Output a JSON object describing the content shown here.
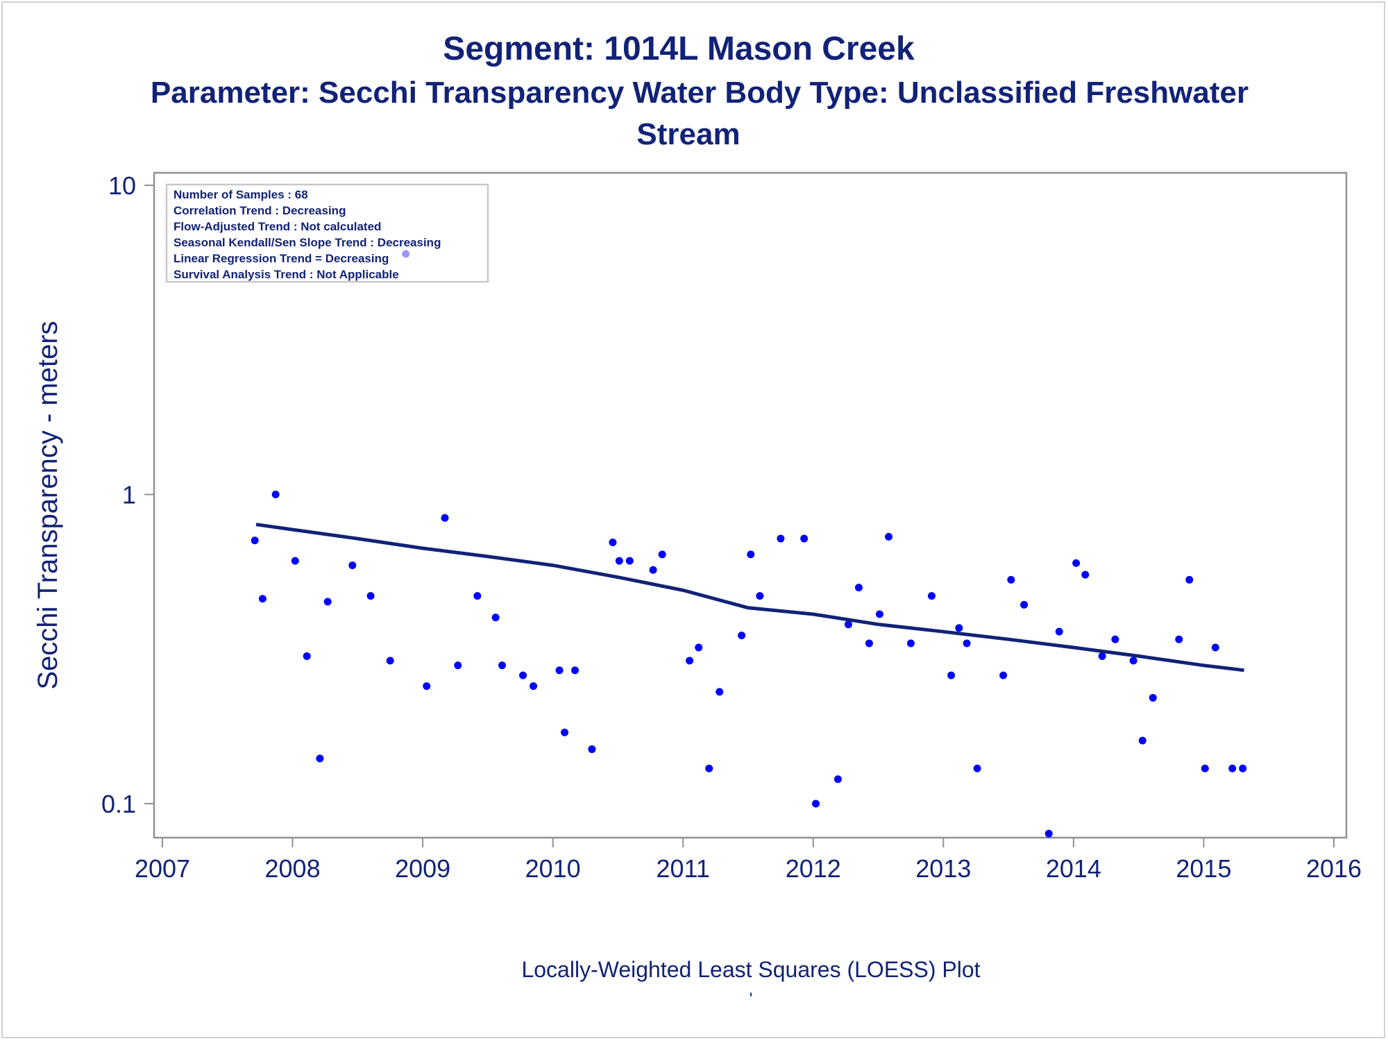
{
  "chart_data": {
    "type": "scatter",
    "title": "Segment: 1014L  Mason Creek",
    "subtitle_line1": "Parameter: Secchi Transparency   Water Body Type: Unclassified Freshwater",
    "subtitle_line2": "Stream",
    "xlabel": "Locally-Weighted Least Squares (LOESS) Plot",
    "xlabel_mark": "'",
    "ylabel": "Secchi Transparency - meters",
    "xlim": [
      2007,
      2016
    ],
    "ylim": [
      0.08,
      10
    ],
    "yscale": "log",
    "x_ticks": [
      "2007",
      "2008",
      "2009",
      "2010",
      "2011",
      "2012",
      "2013",
      "2014",
      "2015",
      "2016"
    ],
    "y_ticks": [
      {
        "value": 0.1,
        "label": "0.1"
      },
      {
        "value": 1,
        "label": "1"
      },
      {
        "value": 10,
        "label": "10"
      }
    ],
    "grid": false,
    "stats_box": {
      "position": "top-left",
      "lines": [
        "Number of Samples : 68",
        "Correlation Trend : Decreasing",
        "Flow-Adjusted Trend : Not calculated",
        "Seasonal Kendall/Sen Slope Trend : Decreasing",
        "Linear Regression Trend = Decreasing",
        "Survival Analysis Trend : Not Applicable"
      ]
    },
    "colors": {
      "points": "#0000ff",
      "trend_line": "#112277",
      "text": "#112277",
      "axes": "#909090"
    },
    "points": [
      {
        "x": 2007.71,
        "y": 0.71
      },
      {
        "x": 2007.77,
        "y": 0.46
      },
      {
        "x": 2007.87,
        "y": 1.0
      },
      {
        "x": 2008.02,
        "y": 0.61
      },
      {
        "x": 2008.11,
        "y": 0.3
      },
      {
        "x": 2008.21,
        "y": 0.14
      },
      {
        "x": 2008.27,
        "y": 0.45
      },
      {
        "x": 2008.46,
        "y": 0.59
      },
      {
        "x": 2008.6,
        "y": 0.47
      },
      {
        "x": 2008.75,
        "y": 0.29
      },
      {
        "x": 2008.87,
        "y": 6.0
      },
      {
        "x": 2009.03,
        "y": 0.24
      },
      {
        "x": 2009.17,
        "y": 0.84
      },
      {
        "x": 2009.27,
        "y": 0.28
      },
      {
        "x": 2009.42,
        "y": 0.47
      },
      {
        "x": 2009.56,
        "y": 0.4
      },
      {
        "x": 2009.61,
        "y": 0.28
      },
      {
        "x": 2009.77,
        "y": 0.26
      },
      {
        "x": 2009.85,
        "y": 0.24
      },
      {
        "x": 2010.05,
        "y": 0.27
      },
      {
        "x": 2010.09,
        "y": 0.17
      },
      {
        "x": 2010.17,
        "y": 0.27
      },
      {
        "x": 2010.3,
        "y": 0.15
      },
      {
        "x": 2010.46,
        "y": 0.7
      },
      {
        "x": 2010.51,
        "y": 0.61
      },
      {
        "x": 2010.59,
        "y": 0.61
      },
      {
        "x": 2010.77,
        "y": 0.57
      },
      {
        "x": 2010.84,
        "y": 0.64
      },
      {
        "x": 2011.05,
        "y": 0.29
      },
      {
        "x": 2011.12,
        "y": 0.32
      },
      {
        "x": 2011.2,
        "y": 0.13
      },
      {
        "x": 2011.28,
        "y": 0.23
      },
      {
        "x": 2011.45,
        "y": 0.35
      },
      {
        "x": 2011.52,
        "y": 0.64
      },
      {
        "x": 2011.59,
        "y": 0.47
      },
      {
        "x": 2011.75,
        "y": 0.72
      },
      {
        "x": 2011.93,
        "y": 0.72
      },
      {
        "x": 2012.02,
        "y": 0.1
      },
      {
        "x": 2012.19,
        "y": 0.12
      },
      {
        "x": 2012.27,
        "y": 0.38
      },
      {
        "x": 2012.35,
        "y": 0.5
      },
      {
        "x": 2012.43,
        "y": 0.33
      },
      {
        "x": 2012.51,
        "y": 0.41
      },
      {
        "x": 2012.58,
        "y": 0.73
      },
      {
        "x": 2012.75,
        "y": 0.33
      },
      {
        "x": 2012.91,
        "y": 0.47
      },
      {
        "x": 2013.06,
        "y": 0.26
      },
      {
        "x": 2013.12,
        "y": 0.37
      },
      {
        "x": 2013.18,
        "y": 0.33
      },
      {
        "x": 2013.26,
        "y": 0.13
      },
      {
        "x": 2013.46,
        "y": 0.26
      },
      {
        "x": 2013.52,
        "y": 0.53
      },
      {
        "x": 2013.62,
        "y": 0.44
      },
      {
        "x": 2013.81,
        "y": 0.08
      },
      {
        "x": 2013.89,
        "y": 0.36
      },
      {
        "x": 2014.02,
        "y": 0.6
      },
      {
        "x": 2014.09,
        "y": 0.55
      },
      {
        "x": 2014.22,
        "y": 0.3
      },
      {
        "x": 2014.32,
        "y": 0.34
      },
      {
        "x": 2014.46,
        "y": 0.29
      },
      {
        "x": 2014.53,
        "y": 0.16
      },
      {
        "x": 2014.61,
        "y": 0.22
      },
      {
        "x": 2014.81,
        "y": 0.34
      },
      {
        "x": 2014.89,
        "y": 0.53
      },
      {
        "x": 2015.01,
        "y": 0.13
      },
      {
        "x": 2015.09,
        "y": 0.32
      },
      {
        "x": 2015.22,
        "y": 0.13
      },
      {
        "x": 2015.3,
        "y": 0.13
      }
    ],
    "trend_line": [
      {
        "x": 2007.72,
        "y": 0.8
      },
      {
        "x": 2008.0,
        "y": 0.77
      },
      {
        "x": 2008.5,
        "y": 0.72
      },
      {
        "x": 2009.0,
        "y": 0.67
      },
      {
        "x": 2009.5,
        "y": 0.63
      },
      {
        "x": 2010.0,
        "y": 0.59
      },
      {
        "x": 2010.5,
        "y": 0.54
      },
      {
        "x": 2011.0,
        "y": 0.49
      },
      {
        "x": 2011.5,
        "y": 0.43
      },
      {
        "x": 2012.0,
        "y": 0.41
      },
      {
        "x": 2012.5,
        "y": 0.38
      },
      {
        "x": 2013.0,
        "y": 0.36
      },
      {
        "x": 2013.5,
        "y": 0.34
      },
      {
        "x": 2014.0,
        "y": 0.32
      },
      {
        "x": 2014.5,
        "y": 0.3
      },
      {
        "x": 2015.0,
        "y": 0.28
      },
      {
        "x": 2015.31,
        "y": 0.27
      }
    ]
  }
}
